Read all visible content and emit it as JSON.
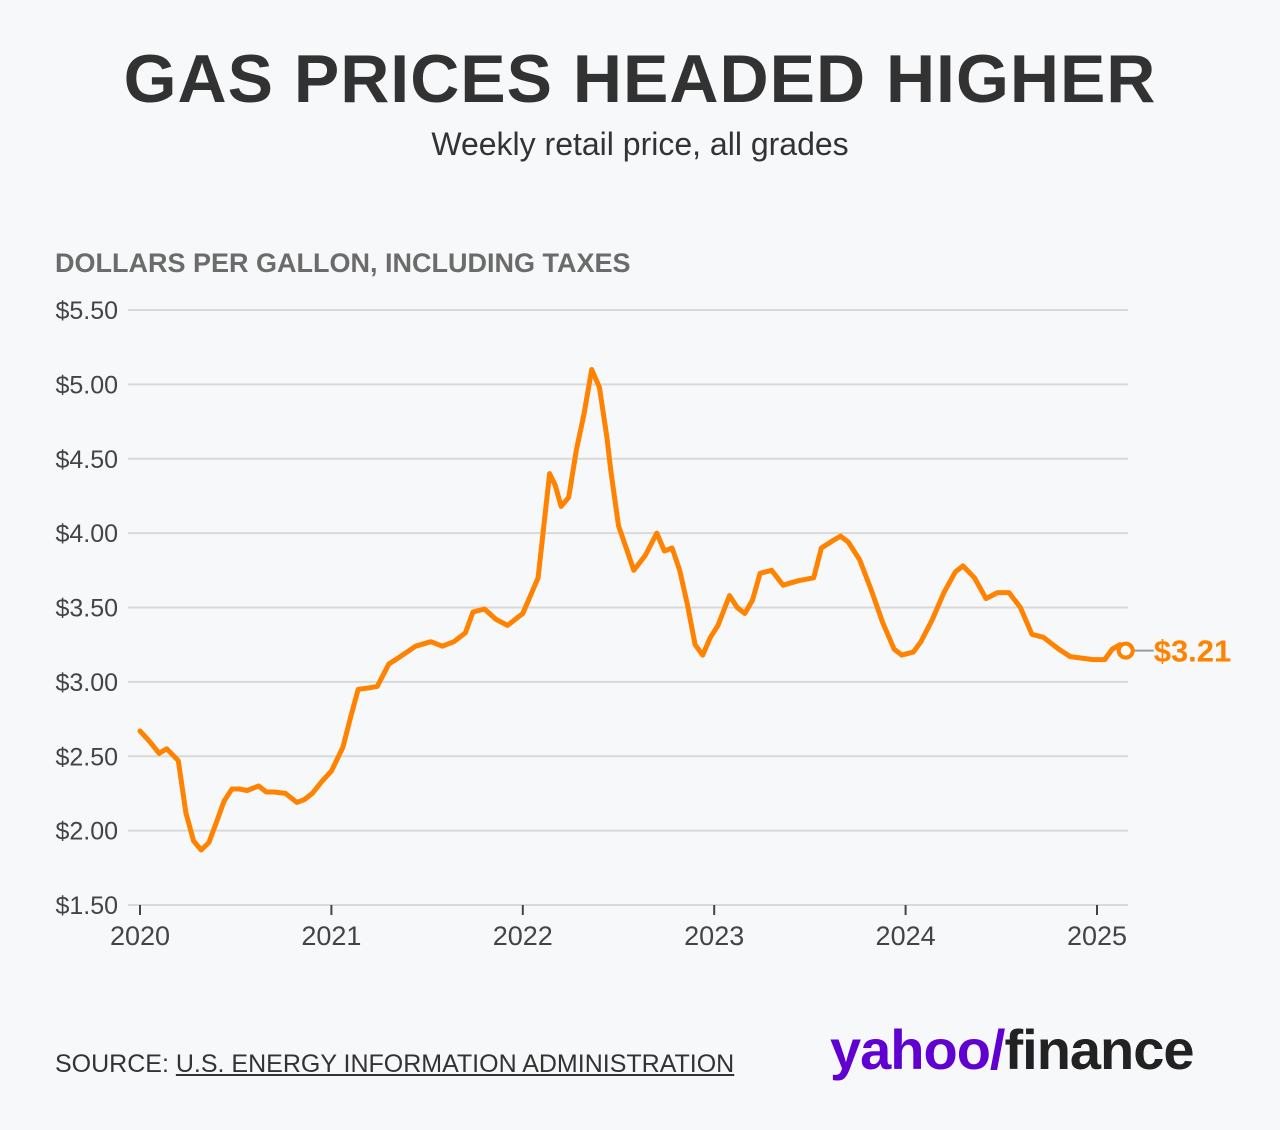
{
  "header": {
    "title": "GAS PRICES HEADED HIGHER",
    "subtitle": "Weekly retail price, all grades"
  },
  "axis": {
    "ylabel": "DOLLARS PER GALLON, INCLUDING TAXES"
  },
  "footer": {
    "source_prefix": "SOURCE: ",
    "source_name": "U.S. ENERGY INFORMATION ADMINISTRATION"
  },
  "brand": {
    "yahoo": "yahoo",
    "slash": "/",
    "finance": "finance"
  },
  "colors": {
    "line": "#ff8200",
    "grid": "#d9d9d9",
    "yahoo_purple": "#6001d2"
  },
  "chart_data": {
    "type": "line",
    "title": "GAS PRICES HEADED HIGHER",
    "subtitle": "Weekly retail price, all grades",
    "ylabel": "DOLLARS PER GALLON, INCLUDING TAXES",
    "xlabel": "",
    "ylim": [
      1.5,
      5.5
    ],
    "xlim": [
      2020.0,
      2025.17
    ],
    "y_ticks": [
      {
        "value": 1.5,
        "label": "$1.50"
      },
      {
        "value": 2.0,
        "label": "$2.00"
      },
      {
        "value": 2.5,
        "label": "$2.50"
      },
      {
        "value": 3.0,
        "label": "$3.00"
      },
      {
        "value": 3.5,
        "label": "$3.50"
      },
      {
        "value": 4.0,
        "label": "$4.00"
      },
      {
        "value": 4.5,
        "label": "$4.50"
      },
      {
        "value": 5.0,
        "label": "$5.00"
      },
      {
        "value": 5.5,
        "label": "$5.50"
      }
    ],
    "x_ticks": [
      {
        "value": 2020,
        "label": "2020"
      },
      {
        "value": 2021,
        "label": "2021"
      },
      {
        "value": 2022,
        "label": "2022"
      },
      {
        "value": 2023,
        "label": "2023"
      },
      {
        "value": 2024,
        "label": "2024"
      },
      {
        "value": 2025,
        "label": "2025"
      }
    ],
    "grid": true,
    "series": [
      {
        "x": [
          2020.0,
          2020.05,
          2020.1,
          2020.14,
          2020.2,
          2020.24,
          2020.28,
          2020.32,
          2020.36,
          2020.4,
          2020.44,
          2020.48,
          2020.52,
          2020.56,
          2020.62,
          2020.66,
          2020.7,
          2020.76,
          2020.82,
          2020.86,
          2020.9,
          2020.95,
          2021.0,
          2021.06,
          2021.1,
          2021.14,
          2021.2,
          2021.24,
          2021.3,
          2021.36,
          2021.44,
          2021.52,
          2021.58,
          2021.64,
          2021.7,
          2021.74,
          2021.8,
          2021.86,
          2021.92,
          2022.0,
          2022.08,
          2022.14,
          2022.17,
          2022.2,
          2022.24,
          2022.28,
          2022.32,
          2022.36,
          2022.4,
          2022.44,
          2022.46,
          2022.5,
          2022.54,
          2022.58,
          2022.64,
          2022.7,
          2022.74,
          2022.78,
          2022.82,
          2022.86,
          2022.9,
          2022.94,
          2022.98,
          2023.02,
          2023.08,
          2023.12,
          2023.16,
          2023.2,
          2023.24,
          2023.3,
          2023.36,
          2023.44,
          2023.52,
          2023.56,
          2023.62,
          2023.66,
          2023.7,
          2023.76,
          2023.82,
          2023.88,
          2023.94,
          2023.98,
          2024.04,
          2024.08,
          2024.14,
          2024.2,
          2024.26,
          2024.3,
          2024.36,
          2024.42,
          2024.48,
          2024.54,
          2024.6,
          2024.66,
          2024.72,
          2024.8,
          2024.86,
          2024.92,
          2024.98,
          2025.04,
          2025.08,
          2025.12,
          2025.15
        ],
        "values": [
          2.67,
          2.6,
          2.52,
          2.55,
          2.47,
          2.12,
          1.93,
          1.87,
          1.92,
          2.06,
          2.2,
          2.28,
          2.28,
          2.27,
          2.3,
          2.26,
          2.26,
          2.25,
          2.19,
          2.21,
          2.25,
          2.33,
          2.4,
          2.56,
          2.76,
          2.95,
          2.96,
          2.97,
          3.12,
          3.17,
          3.24,
          3.27,
          3.24,
          3.27,
          3.33,
          3.47,
          3.49,
          3.42,
          3.38,
          3.46,
          3.7,
          4.4,
          4.32,
          4.18,
          4.24,
          4.56,
          4.8,
          5.1,
          4.98,
          4.64,
          4.42,
          4.05,
          3.9,
          3.75,
          3.85,
          4.0,
          3.88,
          3.9,
          3.75,
          3.52,
          3.25,
          3.18,
          3.3,
          3.38,
          3.58,
          3.5,
          3.46,
          3.55,
          3.73,
          3.75,
          3.65,
          3.68,
          3.7,
          3.9,
          3.95,
          3.98,
          3.94,
          3.82,
          3.62,
          3.4,
          3.22,
          3.18,
          3.2,
          3.27,
          3.42,
          3.6,
          3.74,
          3.78,
          3.7,
          3.56,
          3.6,
          3.6,
          3.5,
          3.32,
          3.3,
          3.22,
          3.17,
          3.16,
          3.15,
          3.15,
          3.22,
          3.25,
          3.21
        ]
      }
    ],
    "end_label": "$3.21",
    "end_value": 3.21
  }
}
